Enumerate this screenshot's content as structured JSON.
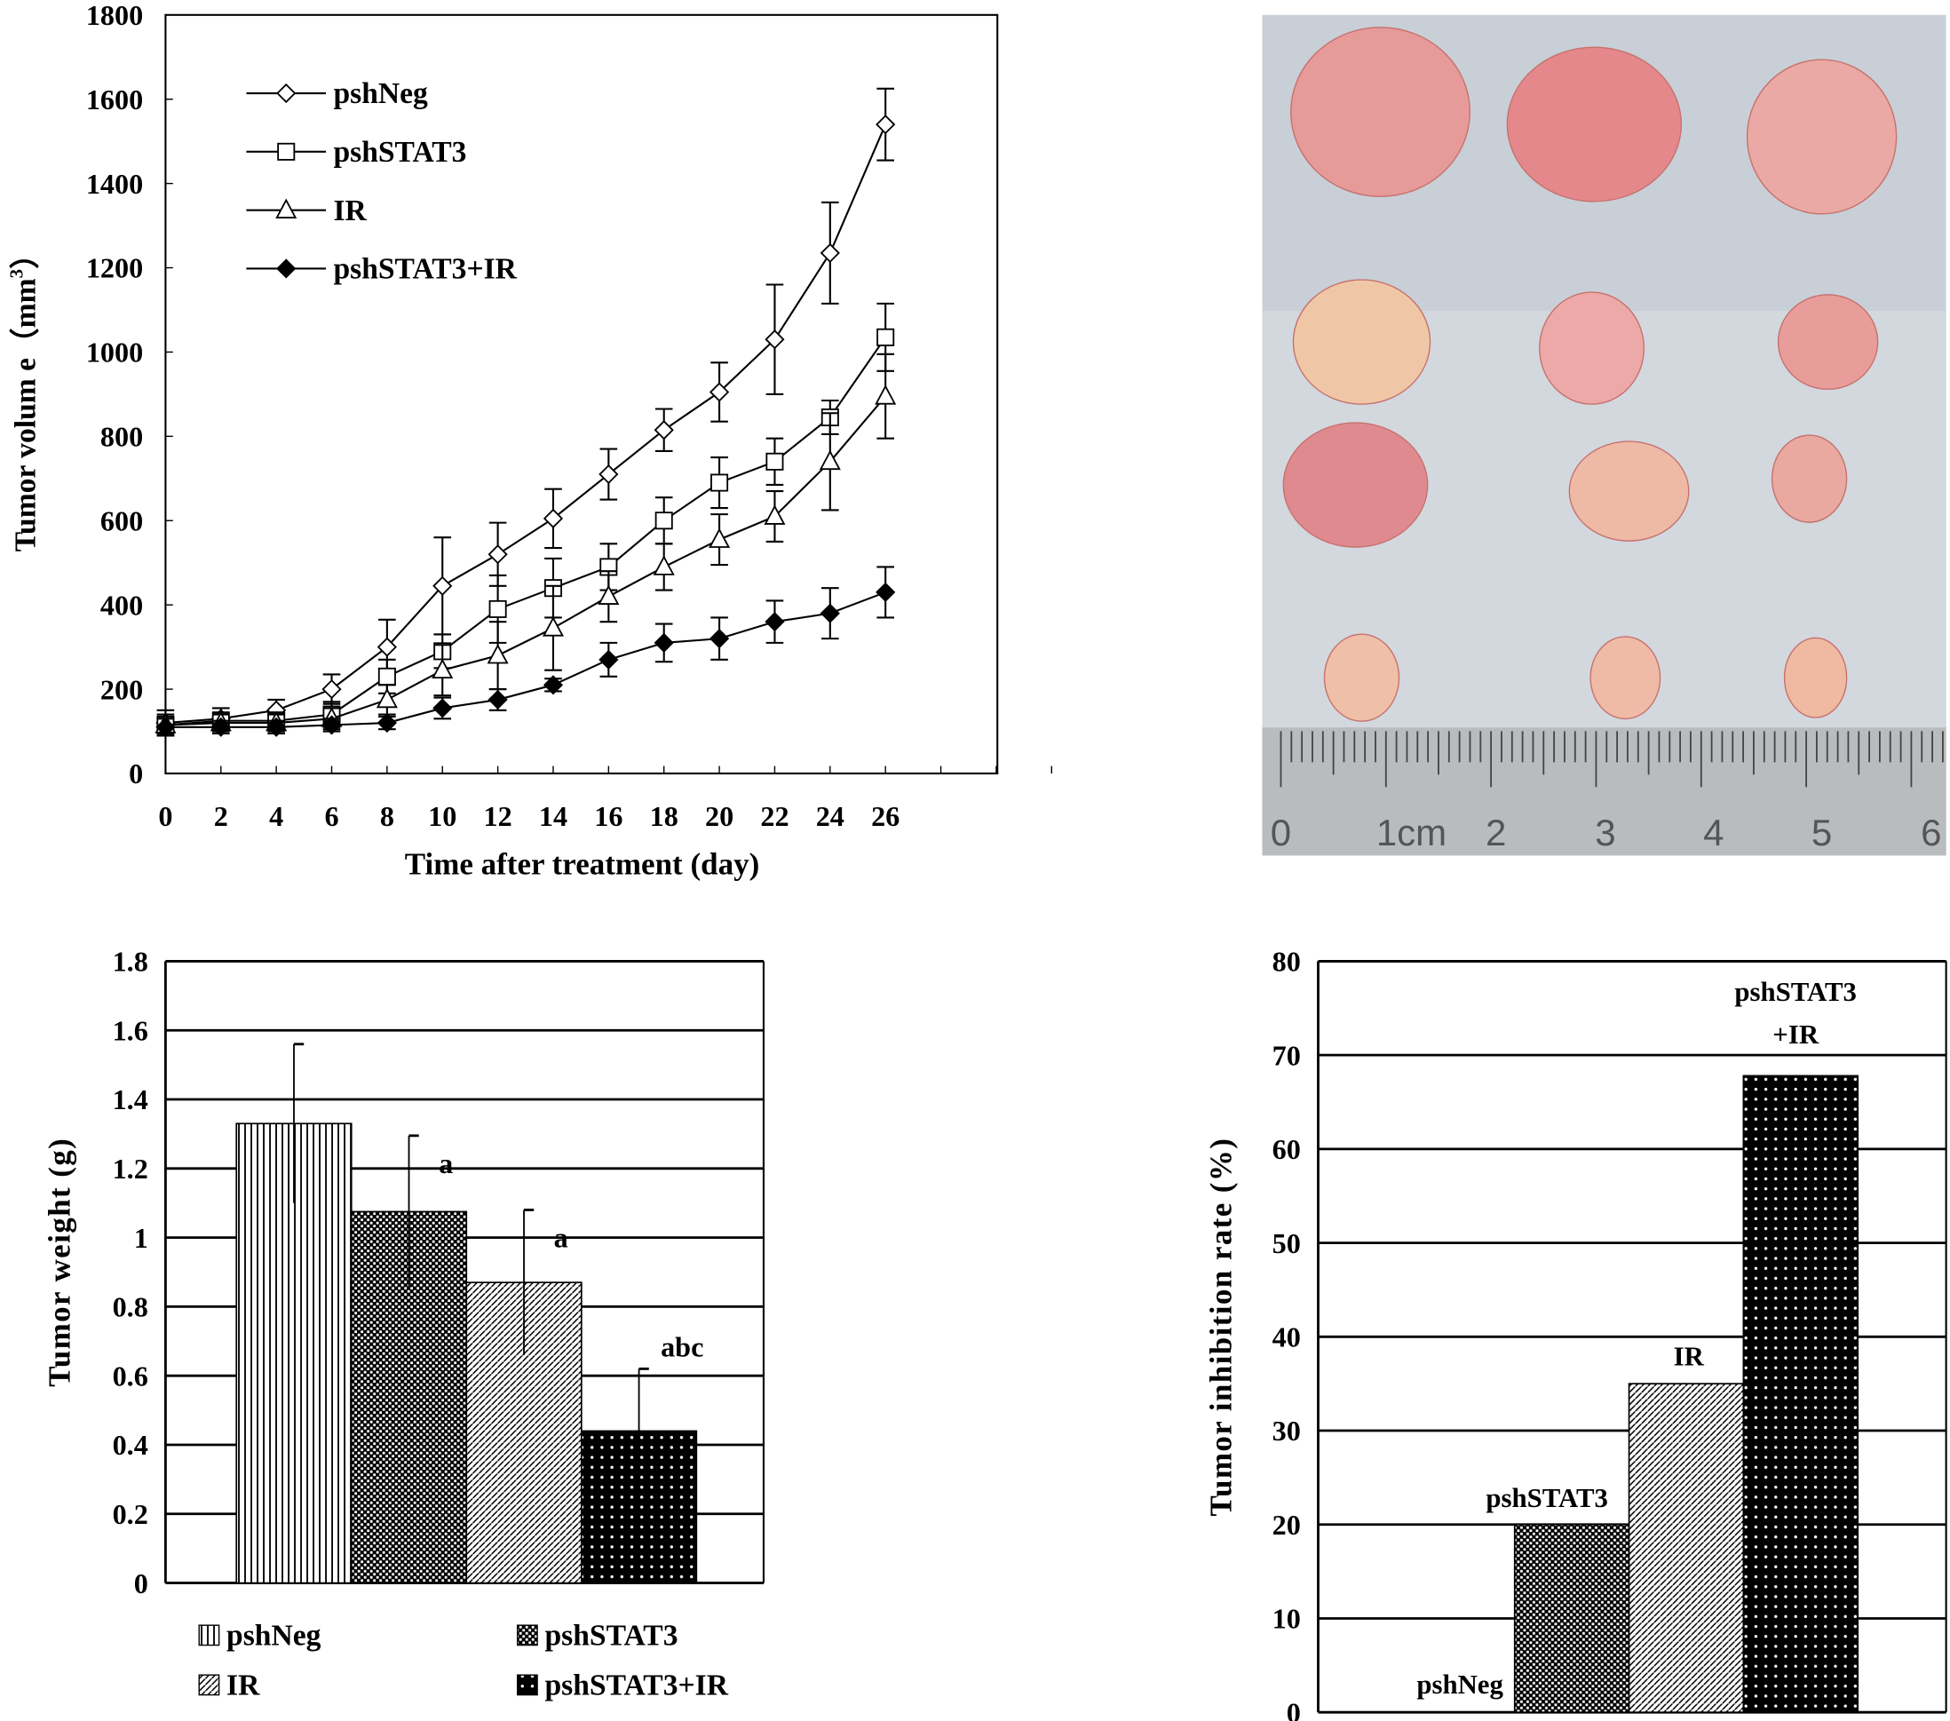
{
  "chart_data": [
    {
      "type": "line",
      "title": "",
      "xlabel": "Time after treatment (day)",
      "ylabel": "Tumor volume (mm³)",
      "ylabel_main": "Tumor volum e（mm",
      "ylabel_sup": "3",
      "ylabel_close": "）",
      "x": [
        0,
        2,
        4,
        6,
        8,
        10,
        12,
        14,
        16,
        18,
        20,
        22,
        24,
        26
      ],
      "xticks": [
        "0",
        "2",
        "4",
        "6",
        "8",
        "10",
        "12",
        "14",
        "16",
        "18",
        "20",
        "22",
        "24",
        "26"
      ],
      "yticks": [
        "0",
        "200",
        "400",
        "600",
        "800",
        "1000",
        "1200",
        "1400",
        "1600",
        "1800"
      ],
      "xlim": [
        0,
        32
      ],
      "ylim": [
        0,
        1800
      ],
      "legend_position": "top-left",
      "series": [
        {
          "name": "pshNeg",
          "marker": "diamond-open",
          "values": [
            120,
            130,
            150,
            200,
            300,
            445,
            520,
            605,
            710,
            815,
            905,
            1030,
            1235,
            1540
          ],
          "errors": [
            30,
            25,
            25,
            35,
            65,
            115,
            75,
            70,
            60,
            50,
            70,
            130,
            120,
            85
          ]
        },
        {
          "name": "pshSTAT3",
          "marker": "square-open",
          "values": [
            115,
            125,
            125,
            140,
            230,
            290,
            390,
            440,
            490,
            600,
            690,
            740,
            845,
            1035
          ],
          "errors": [
            25,
            20,
            20,
            30,
            40,
            40,
            80,
            70,
            55,
            55,
            60,
            55,
            40,
            80
          ]
        },
        {
          "name": "IR",
          "marker": "triangle-open",
          "values": [
            115,
            120,
            120,
            130,
            175,
            245,
            280,
            345,
            420,
            490,
            555,
            610,
            740,
            895
          ],
          "errors": [
            20,
            20,
            20,
            25,
            35,
            60,
            80,
            100,
            60,
            55,
            60,
            60,
            115,
            100
          ]
        },
        {
          "name": "pshSTAT3+IR",
          "marker": "diamond-filled",
          "values": [
            110,
            110,
            110,
            115,
            120,
            155,
            175,
            210,
            270,
            310,
            320,
            360,
            380,
            430
          ],
          "errors": [
            20,
            15,
            15,
            15,
            15,
            25,
            25,
            15,
            40,
            45,
            50,
            50,
            60,
            60
          ]
        }
      ]
    },
    {
      "type": "bar",
      "title": "",
      "xlabel": "",
      "ylabel": "Tumor weight (g)",
      "ylim": [
        0,
        1.8
      ],
      "yticks": [
        "0",
        "0.2",
        "0.4",
        "0.6",
        "0.8",
        "1",
        "1.2",
        "1.4",
        "1.6",
        "1.8"
      ],
      "grid": true,
      "legend_position": "bottom",
      "categories": [
        "pshNeg",
        "pshSTAT3",
        "IR",
        "pshSTAT3+IR"
      ],
      "values": [
        1.33,
        1.075,
        0.87,
        0.44
      ],
      "errors": [
        0.23,
        0.22,
        0.21,
        0.18
      ],
      "annotations": [
        "",
        "a",
        "a",
        "abc"
      ],
      "patterns": [
        "vertical-lines",
        "checker",
        "diagonal",
        "dots-on-black"
      ]
    },
    {
      "type": "bar",
      "title": "",
      "xlabel": "",
      "ylabel": "Tumor inhibition rate (%)",
      "ylim": [
        0,
        80
      ],
      "yticks": [
        "0",
        "10",
        "20",
        "30",
        "40",
        "50",
        "60",
        "70",
        "80"
      ],
      "grid": true,
      "categories": [
        "pshNeg",
        "pshSTAT3",
        "IR",
        "pshSTAT3+IR"
      ],
      "bar_labels": [
        "pshNeg",
        "pshSTAT3",
        "IR",
        "pshSTAT3\n+IR"
      ],
      "bar_label_lines": [
        [
          "pshNeg"
        ],
        [
          "pshSTAT3"
        ],
        [
          "IR"
        ],
        [
          "pshSTAT3",
          "+IR"
        ]
      ],
      "values": [
        0,
        20,
        35,
        67.8
      ],
      "patterns": [
        "none",
        "checker",
        "diagonal",
        "dots-on-black"
      ]
    }
  ],
  "photo": {
    "ruler_labels": [
      "0",
      "1cm",
      "2",
      "3",
      "4",
      "5",
      "6"
    ]
  }
}
